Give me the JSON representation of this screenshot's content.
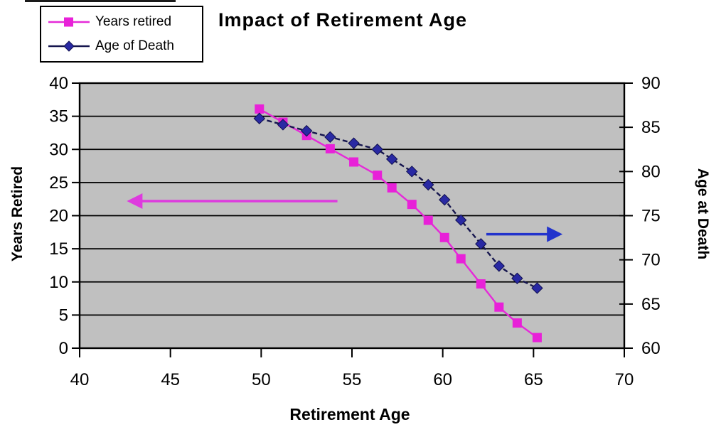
{
  "chart_data": {
    "type": "line",
    "title": "Impact of Retirement Age",
    "xlabel": "Retirement Age",
    "ylabel_left": "Years Retired",
    "ylabel_right": "Age at Death",
    "xlim": [
      40,
      70
    ],
    "ylim_left": [
      0,
      40
    ],
    "ylim_right": [
      60,
      90
    ],
    "x_ticks": [
      40,
      45,
      50,
      55,
      60,
      65,
      70
    ],
    "y_left_ticks": [
      0,
      5,
      10,
      15,
      20,
      25,
      30,
      35,
      40
    ],
    "y_right_ticks": [
      60,
      65,
      70,
      75,
      80,
      85,
      90
    ],
    "grid": "horizontal",
    "legend_position": "top-left",
    "plot_bg_color": "#c0c0c0",
    "grid_color": "#000000",
    "series": [
      {
        "name": "Years retired",
        "axis": "left",
        "marker": "square",
        "marker_color": "#e821d8",
        "line_color": "#e52ad8",
        "line_style": "solid",
        "x": [
          49.9,
          51.2,
          52.5,
          53.8,
          55.1,
          56.4,
          57.2,
          58.3,
          59.2,
          60.1,
          61.0,
          62.1,
          63.1,
          64.1,
          65.2
        ],
        "y": [
          36.1,
          34.1,
          32.1,
          30.1,
          28.1,
          26.1,
          24.2,
          21.7,
          19.3,
          16.7,
          13.5,
          9.7,
          6.2,
          3.8,
          1.6
        ]
      },
      {
        "name": "Age of Death",
        "axis": "right",
        "marker": "diamond",
        "marker_color": "#2929a3",
        "line_color": "#15154e",
        "line_style": "dashed",
        "x": [
          49.9,
          51.2,
          52.5,
          53.8,
          55.1,
          56.4,
          57.2,
          58.3,
          59.2,
          60.1,
          61.0,
          62.1,
          63.1,
          64.1,
          65.2
        ],
        "y": [
          86.0,
          85.3,
          84.6,
          83.9,
          83.2,
          82.5,
          81.4,
          80.0,
          78.5,
          76.8,
          74.5,
          71.8,
          69.3,
          67.9,
          66.8
        ]
      }
    ],
    "annotations": [
      {
        "type": "arrow",
        "direction": "left",
        "color": "#de3ade",
        "y_on_left_axis": 22.2,
        "x_tail": 54.2,
        "x_tip": 42.6
      },
      {
        "type": "arrow",
        "direction": "right",
        "color": "#2233cc",
        "y_on_left_axis": 17.2,
        "x_tail": 62.4,
        "x_tip": 66.6
      }
    ]
  }
}
